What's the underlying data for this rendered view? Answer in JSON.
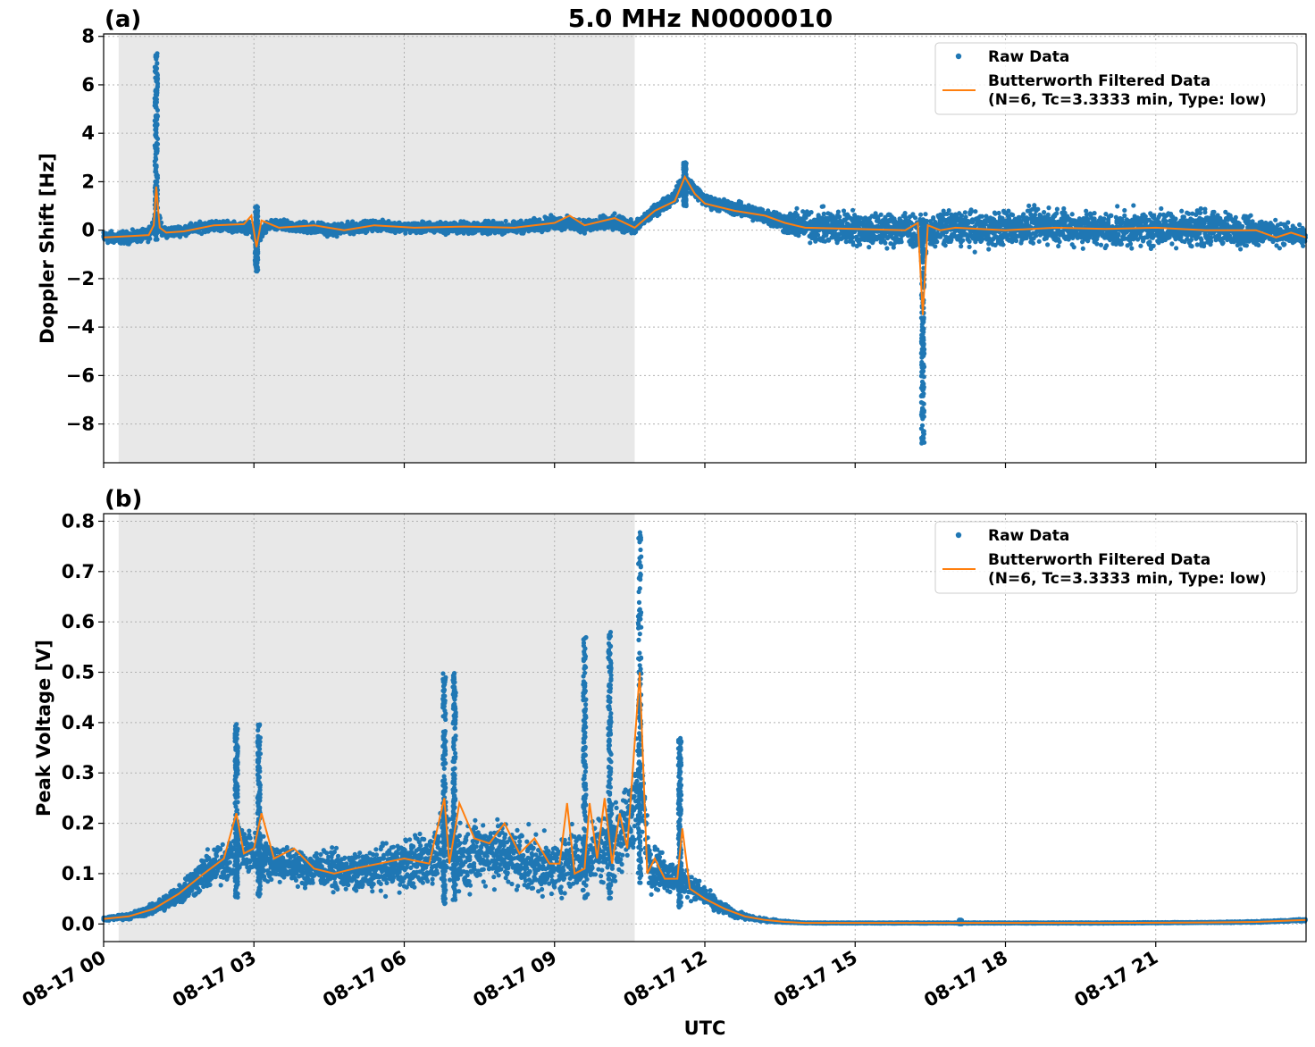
{
  "figure": {
    "title": "5.0 MHz N0000010",
    "xlabel": "UTC"
  },
  "colors": {
    "raw": "#1f77b4",
    "filtered": "#ff7f0e",
    "night_shade": "#e8e8e8",
    "grid": "#b0b0b0"
  },
  "legend": {
    "raw_label": "Raw Data",
    "filtered_label_line1": "Butterworth Filtered Data",
    "filtered_label_line2": "(N=6, Tc=3.3333 min, Type: low)"
  },
  "chart_data": [
    {
      "panel": "(a)",
      "type": "scatter",
      "ylabel": "Doppler Shift [Hz]",
      "xlim_hours": [
        0,
        24
      ],
      "ylim": [
        -9.6,
        8.1
      ],
      "yticks": [
        8,
        6,
        4,
        2,
        0,
        -2,
        -4,
        -6,
        -8
      ],
      "ytick_labels": [
        "8",
        "6",
        "4",
        "2",
        "0",
        "−2",
        "−4",
        "−6",
        "−8"
      ],
      "grid": true,
      "legend_position": "upper-right",
      "night_shade_hours": [
        0.3,
        10.6
      ],
      "series": [
        {
          "name": "Raw Data",
          "style": "dots",
          "x_hours": [
            0,
            0.5,
            0.9,
            1.05,
            1.2,
            1.6,
            2.2,
            2.9,
            3.05,
            3.3,
            4.2,
            4.6,
            5.4,
            6.2,
            7.2,
            8.2,
            9.0,
            9.6,
            10.2,
            10.6,
            11.0,
            11.4,
            11.6,
            12.0,
            12.6,
            13.2,
            13.6,
            14.0,
            14.5,
            15.0,
            15.5,
            16.0,
            16.35,
            16.6,
            17.0,
            17.5,
            18.0,
            19.0,
            20.0,
            21.0,
            22.0,
            22.8,
            23.4,
            24.0
          ],
          "y_center": [
            -0.3,
            -0.3,
            -0.2,
            0.5,
            -0.1,
            0.0,
            0.2,
            0.1,
            -0.3,
            0.2,
            0.1,
            0.0,
            0.2,
            0.1,
            0.1,
            0.1,
            0.3,
            0.2,
            0.3,
            0.1,
            0.8,
            1.4,
            2.1,
            1.2,
            0.9,
            0.6,
            0.3,
            0.2,
            0.1,
            0.1,
            0.0,
            0.1,
            -0.3,
            0.0,
            0.1,
            0.0,
            0.1,
            0.2,
            0.0,
            0.1,
            0.1,
            0.0,
            -0.1,
            -0.3
          ],
          "y_spread": [
            0.35,
            0.35,
            0.35,
            0.6,
            0.3,
            0.3,
            0.3,
            0.3,
            0.5,
            0.3,
            0.35,
            0.35,
            0.3,
            0.3,
            0.35,
            0.35,
            0.4,
            0.4,
            0.45,
            0.35,
            0.35,
            0.4,
            0.4,
            0.35,
            0.4,
            0.45,
            0.6,
            0.9,
            1.0,
            1.0,
            1.0,
            1.0,
            1.0,
            1.0,
            1.0,
            1.0,
            1.0,
            1.0,
            1.0,
            1.0,
            1.0,
            0.9,
            0.7,
            0.5
          ],
          "spikes": [
            {
              "x": 1.05,
              "y_min": -0.4,
              "y_max": 7.3
            },
            {
              "x": 3.05,
              "y_min": -1.7,
              "y_max": 1.0
            },
            {
              "x": 11.6,
              "y_min": 1.0,
              "y_max": 2.8
            },
            {
              "x": 16.35,
              "y_min": -8.8,
              "y_max": 0.5
            }
          ]
        },
        {
          "name": "Butterworth Filtered Data\n(N=6, Tc=3.3333 min, Type: low)",
          "style": "line",
          "x_hours": [
            0,
            0.5,
            0.9,
            1.0,
            1.05,
            1.12,
            1.25,
            1.6,
            2.2,
            2.8,
            2.95,
            3.05,
            3.15,
            3.5,
            4.2,
            4.8,
            5.4,
            6.2,
            7.2,
            8.2,
            9.0,
            9.3,
            9.6,
            10.2,
            10.6,
            11.0,
            11.4,
            11.6,
            11.8,
            12.0,
            12.6,
            13.2,
            13.6,
            14.0,
            15.0,
            16.0,
            16.25,
            16.35,
            16.45,
            16.7,
            17.0,
            18.0,
            19.0,
            20.0,
            21.0,
            22.0,
            23.0,
            23.4,
            23.7,
            24.0
          ],
          "y": [
            -0.3,
            -0.25,
            -0.2,
            0.2,
            1.8,
            0.1,
            -0.1,
            -0.05,
            0.2,
            0.25,
            0.6,
            -0.7,
            0.4,
            0.1,
            0.2,
            0.0,
            0.2,
            0.1,
            0.15,
            0.1,
            0.3,
            0.6,
            0.2,
            0.5,
            0.1,
            0.8,
            1.2,
            2.2,
            1.5,
            1.1,
            0.8,
            0.6,
            0.3,
            0.1,
            0.05,
            0.0,
            0.3,
            -3.5,
            0.2,
            0.0,
            0.1,
            0.0,
            0.1,
            0.05,
            0.1,
            0.0,
            0.0,
            -0.3,
            -0.1,
            -0.3
          ]
        }
      ]
    },
    {
      "panel": "(b)",
      "type": "scatter",
      "ylabel": "Peak Voltage [V]",
      "xlim_hours": [
        0,
        24
      ],
      "ylim": [
        -0.035,
        0.815
      ],
      "yticks": [
        0.0,
        0.1,
        0.2,
        0.3,
        0.4,
        0.5,
        0.6,
        0.7,
        0.8
      ],
      "ytick_labels": [
        "0.0",
        "0.1",
        "0.2",
        "0.3",
        "0.4",
        "0.5",
        "0.6",
        "0.7",
        "0.8"
      ],
      "grid": true,
      "legend_position": "upper-right",
      "night_shade_hours": [
        0.3,
        10.6
      ],
      "series": [
        {
          "name": "Raw Data",
          "style": "dots",
          "x_hours": [
            0,
            0.5,
            1.0,
            1.5,
            2.0,
            2.5,
            2.7,
            3.0,
            3.2,
            3.6,
            4.0,
            4.4,
            5.0,
            5.5,
            6.0,
            6.5,
            6.8,
            7.2,
            7.6,
            8.0,
            8.5,
            9.0,
            9.3,
            9.6,
            9.8,
            10.2,
            10.5,
            10.7,
            10.9,
            11.2,
            11.5,
            11.8,
            12.2,
            12.6,
            13.0,
            13.5,
            14.0,
            16.0,
            18.0,
            20.0,
            22.0,
            23.0,
            24.0
          ],
          "y_center": [
            0.01,
            0.015,
            0.03,
            0.06,
            0.1,
            0.13,
            0.15,
            0.14,
            0.13,
            0.12,
            0.11,
            0.11,
            0.1,
            0.11,
            0.12,
            0.13,
            0.15,
            0.13,
            0.15,
            0.14,
            0.12,
            0.11,
            0.13,
            0.12,
            0.15,
            0.16,
            0.2,
            0.3,
            0.12,
            0.1,
            0.09,
            0.07,
            0.04,
            0.02,
            0.01,
            0.005,
            0.002,
            0.002,
            0.002,
            0.002,
            0.003,
            0.004,
            0.008
          ],
          "y_spread": [
            0.005,
            0.008,
            0.015,
            0.03,
            0.05,
            0.06,
            0.07,
            0.06,
            0.06,
            0.05,
            0.05,
            0.05,
            0.05,
            0.06,
            0.07,
            0.08,
            0.09,
            0.09,
            0.09,
            0.09,
            0.08,
            0.07,
            0.09,
            0.08,
            0.09,
            0.1,
            0.12,
            0.15,
            0.07,
            0.05,
            0.04,
            0.03,
            0.02,
            0.01,
            0.005,
            0.003,
            0.001,
            0.001,
            0.001,
            0.001,
            0.001,
            0.002,
            0.003
          ],
          "spikes": [
            {
              "x": 2.65,
              "y_min": 0.05,
              "y_max": 0.4
            },
            {
              "x": 3.1,
              "y_min": 0.05,
              "y_max": 0.4
            },
            {
              "x": 6.8,
              "y_min": 0.04,
              "y_max": 0.51
            },
            {
              "x": 7.0,
              "y_min": 0.04,
              "y_max": 0.5
            },
            {
              "x": 9.6,
              "y_min": 0.05,
              "y_max": 0.57
            },
            {
              "x": 10.1,
              "y_min": 0.05,
              "y_max": 0.58
            },
            {
              "x": 10.7,
              "y_min": 0.08,
              "y_max": 0.78
            },
            {
              "x": 11.5,
              "y_min": 0.03,
              "y_max": 0.37
            },
            {
              "x": 17.1,
              "y_min": 0.0,
              "y_max": 0.008
            }
          ]
        },
        {
          "name": "Butterworth Filtered Data\n(N=6, Tc=3.3333 min, Type: low)",
          "style": "line",
          "x_hours": [
            0,
            0.5,
            1.0,
            1.5,
            2.0,
            2.4,
            2.65,
            2.8,
            3.0,
            3.15,
            3.4,
            3.8,
            4.2,
            4.6,
            5.0,
            5.5,
            6.0,
            6.5,
            6.8,
            6.9,
            7.1,
            7.4,
            7.7,
            8.0,
            8.3,
            8.6,
            8.9,
            9.1,
            9.25,
            9.4,
            9.6,
            9.7,
            9.85,
            10.0,
            10.15,
            10.3,
            10.45,
            10.7,
            10.85,
            11.0,
            11.2,
            11.45,
            11.55,
            11.7,
            12.0,
            12.4,
            12.8,
            13.2,
            13.6,
            14.0,
            16.0,
            18.0,
            20.0,
            22.0,
            23.0,
            24.0
          ],
          "y": [
            0.01,
            0.015,
            0.03,
            0.06,
            0.1,
            0.13,
            0.22,
            0.14,
            0.15,
            0.22,
            0.13,
            0.15,
            0.11,
            0.1,
            0.11,
            0.12,
            0.13,
            0.12,
            0.25,
            0.12,
            0.24,
            0.17,
            0.16,
            0.2,
            0.14,
            0.17,
            0.12,
            0.12,
            0.24,
            0.1,
            0.11,
            0.24,
            0.13,
            0.25,
            0.12,
            0.22,
            0.15,
            0.5,
            0.1,
            0.13,
            0.09,
            0.09,
            0.19,
            0.07,
            0.05,
            0.03,
            0.015,
            0.008,
            0.004,
            0.002,
            0.002,
            0.002,
            0.002,
            0.003,
            0.004,
            0.008
          ]
        }
      ]
    }
  ],
  "x_ticks": [
    {
      "hour": 0,
      "label": "08-17 00"
    },
    {
      "hour": 3,
      "label": "08-17 03"
    },
    {
      "hour": 6,
      "label": "08-17 06"
    },
    {
      "hour": 9,
      "label": "08-17 09"
    },
    {
      "hour": 12,
      "label": "08-17 12"
    },
    {
      "hour": 15,
      "label": "08-17 15"
    },
    {
      "hour": 18,
      "label": "08-17 18"
    },
    {
      "hour": 21,
      "label": "08-17 21"
    }
  ]
}
